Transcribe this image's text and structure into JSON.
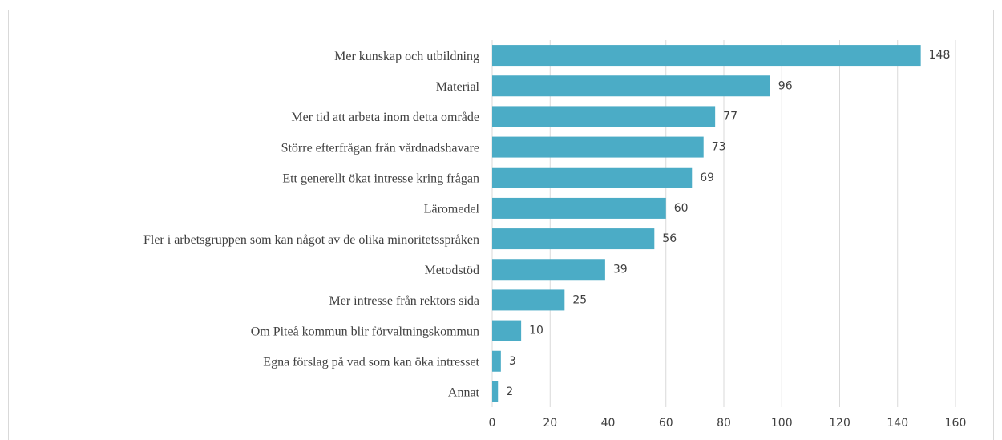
{
  "chart_data": {
    "type": "bar",
    "orientation": "horizontal",
    "categories": [
      "Mer kunskap och utbildning",
      "Material",
      "Mer tid att arbeta inom detta område",
      "Större efterfrågan från vårdnadshavare",
      "Ett generellt ökat intresse kring frågan",
      "Läromedel",
      "Fler i arbetsgruppen som kan något av de olika minoritetsspråken",
      "Metodstöd",
      "Mer intresse från rektors sida",
      "Om Piteå kommun blir förvaltningskommun",
      "Egna förslag på vad som kan öka intresset",
      "Annat"
    ],
    "values": [
      148,
      96,
      77,
      73,
      69,
      60,
      56,
      39,
      25,
      10,
      3,
      2
    ],
    "color": "#4bacc6",
    "xlim": [
      0,
      160
    ],
    "xticks": [
      0,
      20,
      40,
      60,
      80,
      100,
      120,
      140,
      160
    ],
    "grid": true
  }
}
